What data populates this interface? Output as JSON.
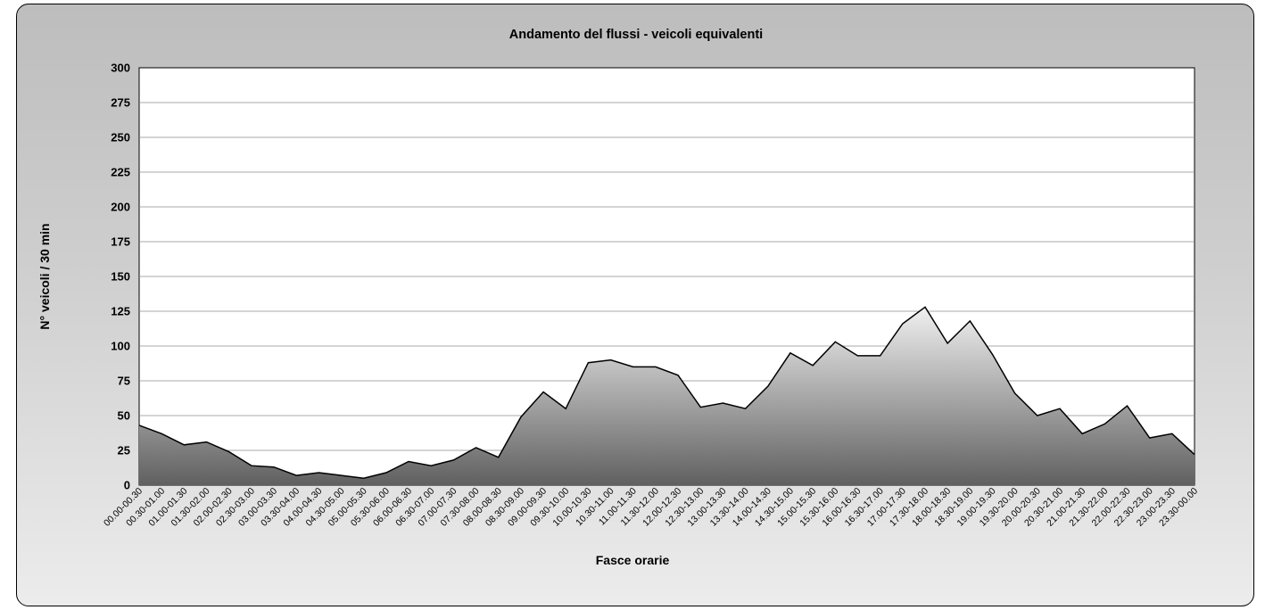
{
  "chart_data": {
    "type": "area",
    "title": "Andamento del flussi - veicoli equivalenti",
    "xlabel": "Fasce orarie",
    "ylabel": "N° veicoli / 30 min",
    "ylim": [
      0,
      300
    ],
    "yticks": [
      0,
      25,
      50,
      75,
      100,
      125,
      150,
      175,
      200,
      225,
      250,
      275,
      300
    ],
    "grid": true,
    "legend": "none",
    "categories": [
      "00.00-00.30",
      "00.30-01.00",
      "01.00-01.30",
      "01.30-02.00",
      "02.00-02.30",
      "02.30-03.00",
      "03.00-03.30",
      "03.30-04.00",
      "04.00-04.30",
      "04.30-05.00",
      "05.00-05.30",
      "05.30-06.00",
      "06.00-06.30",
      "06.30-07.00",
      "07.00-07.30",
      "07.30-08.00",
      "08.00-08.30",
      "08.30-09.00",
      "09.00-09.30",
      "09.30-10.00",
      "10.00-10.30",
      "10.30-11.00",
      "11.00-11.30",
      "11.30-12.00",
      "12.00-12.30",
      "12.30-13.00",
      "13.00-13.30",
      "13.30-14.00",
      "14.00-14.30",
      "14.30-15.00",
      "15.00-15.30",
      "15.30-16.00",
      "16.00-16.30",
      "16.30-17.00",
      "17.00-17.30",
      "17.30-18.00",
      "18.00-18.30",
      "18.30-19.00",
      "19.00-19.30",
      "19.30-20.00",
      "20.00-20.30",
      "20.30-21.00",
      "21.00-21.30",
      "21.30-22.00",
      "22.00-22.30",
      "22.30-23.00",
      "23.00-23.30",
      "23.30-00.00"
    ],
    "values": [
      43,
      37,
      29,
      31,
      24,
      14,
      13,
      7,
      9,
      7,
      5,
      9,
      17,
      14,
      18,
      27,
      20,
      49,
      67,
      55,
      88,
      90,
      85,
      85,
      79,
      56,
      59,
      55,
      71,
      95,
      86,
      103,
      93,
      93,
      116,
      128,
      102,
      118,
      94,
      66,
      50,
      55,
      37,
      44,
      57,
      34,
      37,
      22
    ],
    "colors": {
      "area_top": "#f0f0f0",
      "area_bottom": "#606060",
      "line": "#000000",
      "plot_background": "#ffffff",
      "grid": "#8c8c8c"
    }
  }
}
